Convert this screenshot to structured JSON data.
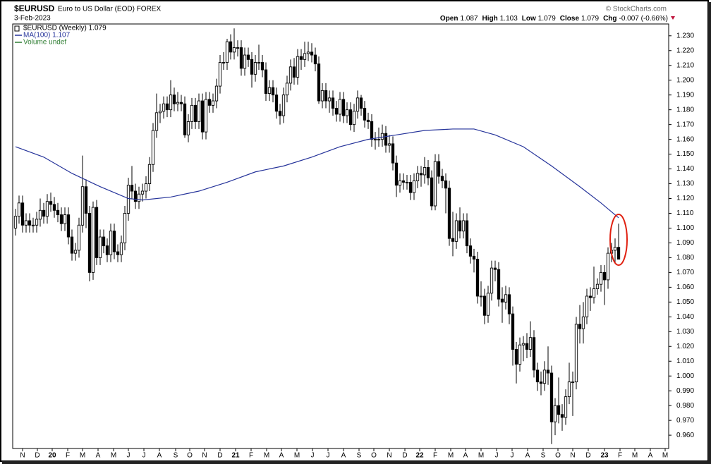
{
  "chart_data": {
    "type": "candlestick",
    "symbol": "$EURUSD",
    "title": "Euro to US Dollar (EOD) FOREX",
    "date": "3-Feb-2023",
    "copyright": "© StockCharts.com",
    "quote": [
      {
        "label": "Open",
        "value": "1.087"
      },
      {
        "label": "High",
        "value": "1.103"
      },
      {
        "label": "Low",
        "value": "1.079"
      },
      {
        "label": "Close",
        "value": "1.079"
      },
      {
        "label": "Chg",
        "value": "-0.007 (-0.66%)"
      }
    ],
    "legend": [
      "$EURUSD (Weekly) 1.079",
      "MA(100) 1.107",
      "Volume undef"
    ],
    "up_color": "#ffffff",
    "down_color": "#000000",
    "edge_color": "#000000",
    "x": [
      0,
      1,
      2,
      3,
      4,
      5,
      6,
      7,
      8,
      9,
      10,
      11,
      12,
      13,
      14,
      15,
      16,
      17,
      18,
      19,
      20,
      21,
      22,
      23,
      24,
      25,
      26,
      27,
      28,
      29,
      30,
      31,
      32,
      33,
      34,
      35,
      36,
      37,
      38,
      39,
      40,
      41,
      42,
      43,
      44,
      45,
      46,
      47,
      48,
      49,
      50,
      51,
      52,
      53,
      54,
      55,
      56,
      57,
      58,
      59,
      60,
      61,
      62,
      63,
      64,
      65,
      66,
      67,
      68,
      69,
      70,
      71,
      72,
      73,
      74,
      75,
      76,
      77,
      78,
      79,
      80,
      81,
      82,
      83,
      84,
      85,
      86,
      87,
      88,
      89,
      90,
      91,
      92,
      93,
      94,
      95,
      96,
      97,
      98,
      99,
      100,
      101,
      102,
      103,
      104,
      105,
      106,
      107,
      108,
      109,
      110,
      111,
      112,
      113,
      114,
      115,
      116,
      117,
      118,
      119,
      120,
      121,
      122,
      123,
      124,
      125,
      126,
      127,
      128,
      129,
      130,
      131,
      132,
      133,
      134,
      135,
      136,
      137,
      138,
      139,
      140,
      141,
      142,
      143,
      144,
      145,
      146,
      147,
      148,
      149,
      150,
      151,
      152,
      153,
      154,
      155,
      156,
      157,
      158,
      159,
      160,
      161,
      162,
      163,
      164,
      165,
      166,
      167,
      168,
      169,
      170,
      171
    ],
    "open": [
      1.1,
      1.108,
      1.117,
      1.102,
      1.105,
      1.102,
      1.102,
      1.106,
      1.112,
      1.108,
      1.118,
      1.116,
      1.112,
      1.109,
      1.103,
      1.109,
      1.094,
      1.083,
      1.085,
      1.102,
      1.128,
      1.11,
      1.07,
      1.114,
      1.08,
      1.094,
      1.088,
      1.082,
      1.098,
      1.084,
      1.082,
      1.09,
      1.11,
      1.129,
      1.125,
      1.118,
      1.123,
      1.125,
      1.13,
      1.143,
      1.166,
      1.178,
      1.179,
      1.184,
      1.18,
      1.19,
      1.184,
      1.185,
      1.184,
      1.163,
      1.172,
      1.183,
      1.172,
      1.186,
      1.165,
      1.187,
      1.183,
      1.186,
      1.196,
      1.212,
      1.212,
      1.226,
      1.219,
      1.222,
      1.222,
      1.208,
      1.217,
      1.214,
      1.204,
      1.212,
      1.212,
      1.207,
      1.191,
      1.195,
      1.19,
      1.179,
      1.176,
      1.19,
      1.198,
      1.209,
      1.202,
      1.216,
      1.214,
      1.218,
      1.219,
      1.217,
      1.211,
      1.186,
      1.193,
      1.186,
      1.188,
      1.181,
      1.177,
      1.187,
      1.176,
      1.18,
      1.17,
      1.179,
      1.188,
      1.181,
      1.173,
      1.172,
      1.16,
      1.16,
      1.16,
      1.164,
      1.156,
      1.157,
      1.144,
      1.129,
      1.132,
      1.131,
      1.131,
      1.124,
      1.132,
      1.137,
      1.136,
      1.141,
      1.134,
      1.115,
      1.145,
      1.135,
      1.132,
      1.127,
      1.093,
      1.091,
      1.105,
      1.098,
      1.105,
      1.088,
      1.081,
      1.079,
      1.054,
      1.054,
      1.041,
      1.056,
      1.073,
      1.072,
      1.052,
      1.05,
      1.055,
      1.042,
      1.018,
      1.008,
      1.021,
      1.022,
      1.018,
      1.026,
      1.004,
      0.996,
      0.995,
      1.004,
      1.002,
      0.969,
      0.98,
      0.974,
      0.972,
      0.986,
      0.996,
      0.996,
      1.035,
      1.032,
      1.04,
      1.054,
      1.053,
      1.059,
      1.062,
      1.07,
      1.065,
      1.083,
      1.085,
      1.087
    ],
    "high": [
      1.113,
      1.122,
      1.122,
      1.11,
      1.11,
      1.107,
      1.111,
      1.12,
      1.117,
      1.123,
      1.124,
      1.121,
      1.117,
      1.114,
      1.114,
      1.114,
      1.099,
      1.09,
      1.107,
      1.149,
      1.133,
      1.115,
      1.118,
      1.119,
      1.099,
      1.099,
      1.093,
      1.103,
      1.103,
      1.089,
      1.095,
      1.115,
      1.134,
      1.142,
      1.13,
      1.128,
      1.13,
      1.135,
      1.148,
      1.171,
      1.191,
      1.184,
      1.189,
      1.189,
      1.2,
      1.195,
      1.192,
      1.19,
      1.189,
      1.177,
      1.188,
      1.188,
      1.191,
      1.191,
      1.192,
      1.192,
      1.191,
      1.201,
      1.217,
      1.219,
      1.228,
      1.231,
      1.235,
      1.227,
      1.227,
      1.222,
      1.222,
      1.219,
      1.217,
      1.224,
      1.217,
      1.212,
      1.2,
      1.2,
      1.195,
      1.184,
      1.195,
      1.203,
      1.214,
      1.215,
      1.221,
      1.221,
      1.226,
      1.226,
      1.225,
      1.222,
      1.216,
      1.198,
      1.198,
      1.193,
      1.193,
      1.186,
      1.192,
      1.192,
      1.185,
      1.185,
      1.184,
      1.193,
      1.19,
      1.186,
      1.178,
      1.177,
      1.165,
      1.168,
      1.17,
      1.169,
      1.163,
      1.162,
      1.149,
      1.137,
      1.137,
      1.136,
      1.136,
      1.137,
      1.142,
      1.142,
      1.148,
      1.146,
      1.139,
      1.15,
      1.15,
      1.14,
      1.137,
      1.132,
      1.111,
      1.11,
      1.114,
      1.11,
      1.11,
      1.093,
      1.086,
      1.084,
      1.064,
      1.059,
      1.061,
      1.078,
      1.078,
      1.077,
      1.06,
      1.061,
      1.06,
      1.047,
      1.023,
      1.026,
      1.027,
      1.029,
      1.037,
      1.031,
      1.009,
      1.003,
      1.01,
      1.02,
      1.007,
      0.985,
      0.999,
      0.981,
      0.991,
      1.009,
      1.003,
      1.04,
      1.048,
      1.05,
      1.059,
      1.06,
      1.074,
      1.066,
      1.075,
      1.075,
      1.087,
      1.09,
      1.093,
      1.103
    ],
    "low": [
      1.095,
      1.103,
      1.097,
      1.097,
      1.097,
      1.097,
      1.097,
      1.101,
      1.103,
      1.103,
      1.111,
      1.107,
      1.104,
      1.098,
      1.098,
      1.089,
      1.078,
      1.078,
      1.08,
      1.097,
      1.1,
      1.064,
      1.065,
      1.075,
      1.075,
      1.083,
      1.077,
      1.077,
      1.079,
      1.077,
      1.077,
      1.085,
      1.105,
      1.12,
      1.113,
      1.113,
      1.118,
      1.12,
      1.125,
      1.138,
      1.161,
      1.171,
      1.174,
      1.175,
      1.175,
      1.179,
      1.179,
      1.179,
      1.161,
      1.158,
      1.167,
      1.167,
      1.167,
      1.16,
      1.16,
      1.178,
      1.178,
      1.181,
      1.191,
      1.207,
      1.207,
      1.214,
      1.214,
      1.216,
      1.203,
      1.203,
      1.209,
      1.195,
      1.199,
      1.207,
      1.202,
      1.186,
      1.186,
      1.185,
      1.174,
      1.17,
      1.171,
      1.185,
      1.193,
      1.197,
      1.197,
      1.207,
      1.209,
      1.213,
      1.212,
      1.206,
      1.184,
      1.181,
      1.181,
      1.178,
      1.176,
      1.172,
      1.172,
      1.171,
      1.171,
      1.166,
      1.165,
      1.174,
      1.176,
      1.168,
      1.167,
      1.155,
      1.153,
      1.155,
      1.155,
      1.151,
      1.151,
      1.139,
      1.121,
      1.124,
      1.126,
      1.126,
      1.119,
      1.119,
      1.127,
      1.128,
      1.13,
      1.129,
      1.112,
      1.112,
      1.13,
      1.127,
      1.11,
      1.088,
      1.081,
      1.086,
      1.093,
      1.093,
      1.083,
      1.076,
      1.07,
      1.049,
      1.047,
      1.035,
      1.036,
      1.051,
      1.064,
      1.047,
      1.036,
      1.045,
      1.035,
      1.007,
      0.995,
      1.003,
      1.01,
      1.012,
      1.013,
      0.999,
      0.99,
      0.987,
      0.99,
      0.994,
      0.954,
      0.96,
      0.968,
      0.963,
      0.967,
      0.981,
      0.973,
      0.991,
      1.022,
      1.022,
      1.035,
      1.044,
      1.049,
      1.055,
      1.057,
      1.048,
      1.059,
      1.077,
      1.076,
      1.079
    ],
    "close": [
      1.108,
      1.117,
      1.102,
      1.105,
      1.102,
      1.102,
      1.106,
      1.112,
      1.108,
      1.118,
      1.116,
      1.112,
      1.109,
      1.103,
      1.109,
      1.094,
      1.083,
      1.085,
      1.102,
      1.128,
      1.11,
      1.07,
      1.114,
      1.08,
      1.094,
      1.088,
      1.082,
      1.098,
      1.084,
      1.082,
      1.09,
      1.11,
      1.129,
      1.125,
      1.118,
      1.123,
      1.125,
      1.13,
      1.143,
      1.166,
      1.178,
      1.179,
      1.184,
      1.18,
      1.19,
      1.184,
      1.185,
      1.184,
      1.163,
      1.172,
      1.183,
      1.172,
      1.186,
      1.165,
      1.187,
      1.183,
      1.186,
      1.196,
      1.212,
      1.212,
      1.226,
      1.219,
      1.222,
      1.222,
      1.208,
      1.217,
      1.214,
      1.204,
      1.212,
      1.212,
      1.207,
      1.191,
      1.195,
      1.19,
      1.179,
      1.176,
      1.19,
      1.198,
      1.209,
      1.202,
      1.216,
      1.214,
      1.218,
      1.219,
      1.217,
      1.211,
      1.186,
      1.193,
      1.186,
      1.188,
      1.181,
      1.177,
      1.187,
      1.176,
      1.18,
      1.17,
      1.179,
      1.188,
      1.181,
      1.173,
      1.172,
      1.16,
      1.16,
      1.16,
      1.164,
      1.156,
      1.157,
      1.144,
      1.129,
      1.132,
      1.131,
      1.131,
      1.124,
      1.132,
      1.137,
      1.136,
      1.141,
      1.134,
      1.115,
      1.145,
      1.135,
      1.132,
      1.127,
      1.093,
      1.091,
      1.105,
      1.098,
      1.105,
      1.088,
      1.081,
      1.079,
      1.054,
      1.054,
      1.041,
      1.056,
      1.073,
      1.072,
      1.052,
      1.05,
      1.055,
      1.042,
      1.018,
      1.008,
      1.021,
      1.022,
      1.018,
      1.026,
      1.004,
      0.996,
      0.995,
      1.004,
      1.002,
      0.969,
      0.98,
      0.974,
      0.972,
      0.986,
      0.996,
      0.996,
      1.035,
      1.032,
      1.04,
      1.054,
      1.053,
      1.059,
      1.062,
      1.07,
      1.065,
      1.083,
      1.085,
      1.087,
      1.079
    ],
    "series": [
      {
        "name": "MA(100)",
        "color": "#25339a",
        "x": [
          0,
          8,
          16,
          24,
          32,
          36,
          44,
          52,
          60,
          68,
          76,
          84,
          92,
          100,
          108,
          116,
          124,
          130,
          136,
          144,
          152,
          160,
          166,
          171
        ],
        "values": [
          1.155,
          1.148,
          1.137,
          1.128,
          1.12,
          1.119,
          1.121,
          1.125,
          1.131,
          1.138,
          1.142,
          1.148,
          1.155,
          1.16,
          1.163,
          1.166,
          1.167,
          1.167,
          1.163,
          1.155,
          1.142,
          1.128,
          1.117,
          1.107
        ]
      }
    ],
    "xlim": [
      -0.8,
      185.2
    ],
    "ylim": [
      0.951,
      1.238
    ],
    "xticks": [
      {
        "value": 2,
        "label": "N"
      },
      {
        "value": 6.2,
        "label": "D"
      },
      {
        "value": 10.4,
        "label": "20"
      },
      {
        "value": 14.8,
        "label": "F"
      },
      {
        "value": 19,
        "label": "M"
      },
      {
        "value": 23.4,
        "label": "A"
      },
      {
        "value": 27.8,
        "label": "M"
      },
      {
        "value": 32,
        "label": "J"
      },
      {
        "value": 36.4,
        "label": "J"
      },
      {
        "value": 40.8,
        "label": "A"
      },
      {
        "value": 45.4,
        "label": "S"
      },
      {
        "value": 49.4,
        "label": "O"
      },
      {
        "value": 53.6,
        "label": "N"
      },
      {
        "value": 58,
        "label": "D"
      },
      {
        "value": 62.4,
        "label": "21"
      },
      {
        "value": 66.8,
        "label": "F"
      },
      {
        "value": 71.2,
        "label": "M"
      },
      {
        "value": 75.4,
        "label": "A"
      },
      {
        "value": 79.8,
        "label": "M"
      },
      {
        "value": 84.2,
        "label": "J"
      },
      {
        "value": 88.6,
        "label": "J"
      },
      {
        "value": 93,
        "label": "A"
      },
      {
        "value": 97.4,
        "label": "S"
      },
      {
        "value": 101.6,
        "label": "O"
      },
      {
        "value": 106,
        "label": "N"
      },
      {
        "value": 110.4,
        "label": "D"
      },
      {
        "value": 114.6,
        "label": "22"
      },
      {
        "value": 119,
        "label": "F"
      },
      {
        "value": 123.4,
        "label": "M"
      },
      {
        "value": 127.6,
        "label": "A"
      },
      {
        "value": 132,
        "label": "M"
      },
      {
        "value": 136.4,
        "label": "J"
      },
      {
        "value": 140.8,
        "label": "J"
      },
      {
        "value": 145.2,
        "label": "A"
      },
      {
        "value": 149.6,
        "label": "S"
      },
      {
        "value": 153.8,
        "label": "O"
      },
      {
        "value": 158,
        "label": "N"
      },
      {
        "value": 162.4,
        "label": "D"
      },
      {
        "value": 167,
        "label": "23"
      },
      {
        "value": 171.4,
        "label": "F"
      },
      {
        "value": 175.6,
        "label": "M"
      },
      {
        "value": 180,
        "label": "A"
      },
      {
        "value": 184.2,
        "label": "M"
      }
    ],
    "yticks": [
      {
        "value": 0.96,
        "label": "0.960"
      },
      {
        "value": 0.97,
        "label": "0.970"
      },
      {
        "value": 0.98,
        "label": "0.980"
      },
      {
        "value": 0.99,
        "label": "0.990"
      },
      {
        "value": 1.0,
        "label": "1.000"
      },
      {
        "value": 1.01,
        "label": "1.010"
      },
      {
        "value": 1.02,
        "label": "1.020"
      },
      {
        "value": 1.03,
        "label": "1.030"
      },
      {
        "value": 1.04,
        "label": "1.040"
      },
      {
        "value": 1.05,
        "label": "1.050"
      },
      {
        "value": 1.06,
        "label": "1.060"
      },
      {
        "value": 1.07,
        "label": "1.070"
      },
      {
        "value": 1.08,
        "label": "1.080"
      },
      {
        "value": 1.09,
        "label": "1.090"
      },
      {
        "value": 1.1,
        "label": "1.100"
      },
      {
        "value": 1.11,
        "label": "1.110"
      },
      {
        "value": 1.12,
        "label": "1.120"
      },
      {
        "value": 1.13,
        "label": "1.130"
      },
      {
        "value": 1.14,
        "label": "1.140"
      },
      {
        "value": 1.15,
        "label": "1.150"
      },
      {
        "value": 1.16,
        "label": "1.160"
      },
      {
        "value": 1.17,
        "label": "1.170"
      },
      {
        "value": 1.18,
        "label": "1.180"
      },
      {
        "value": 1.19,
        "label": "1.190"
      },
      {
        "value": 1.2,
        "label": "1.200"
      },
      {
        "value": 1.21,
        "label": "1.210"
      },
      {
        "value": 1.22,
        "label": "1.220"
      },
      {
        "value": 1.23,
        "label": "1.230"
      }
    ],
    "grid": false
  }
}
